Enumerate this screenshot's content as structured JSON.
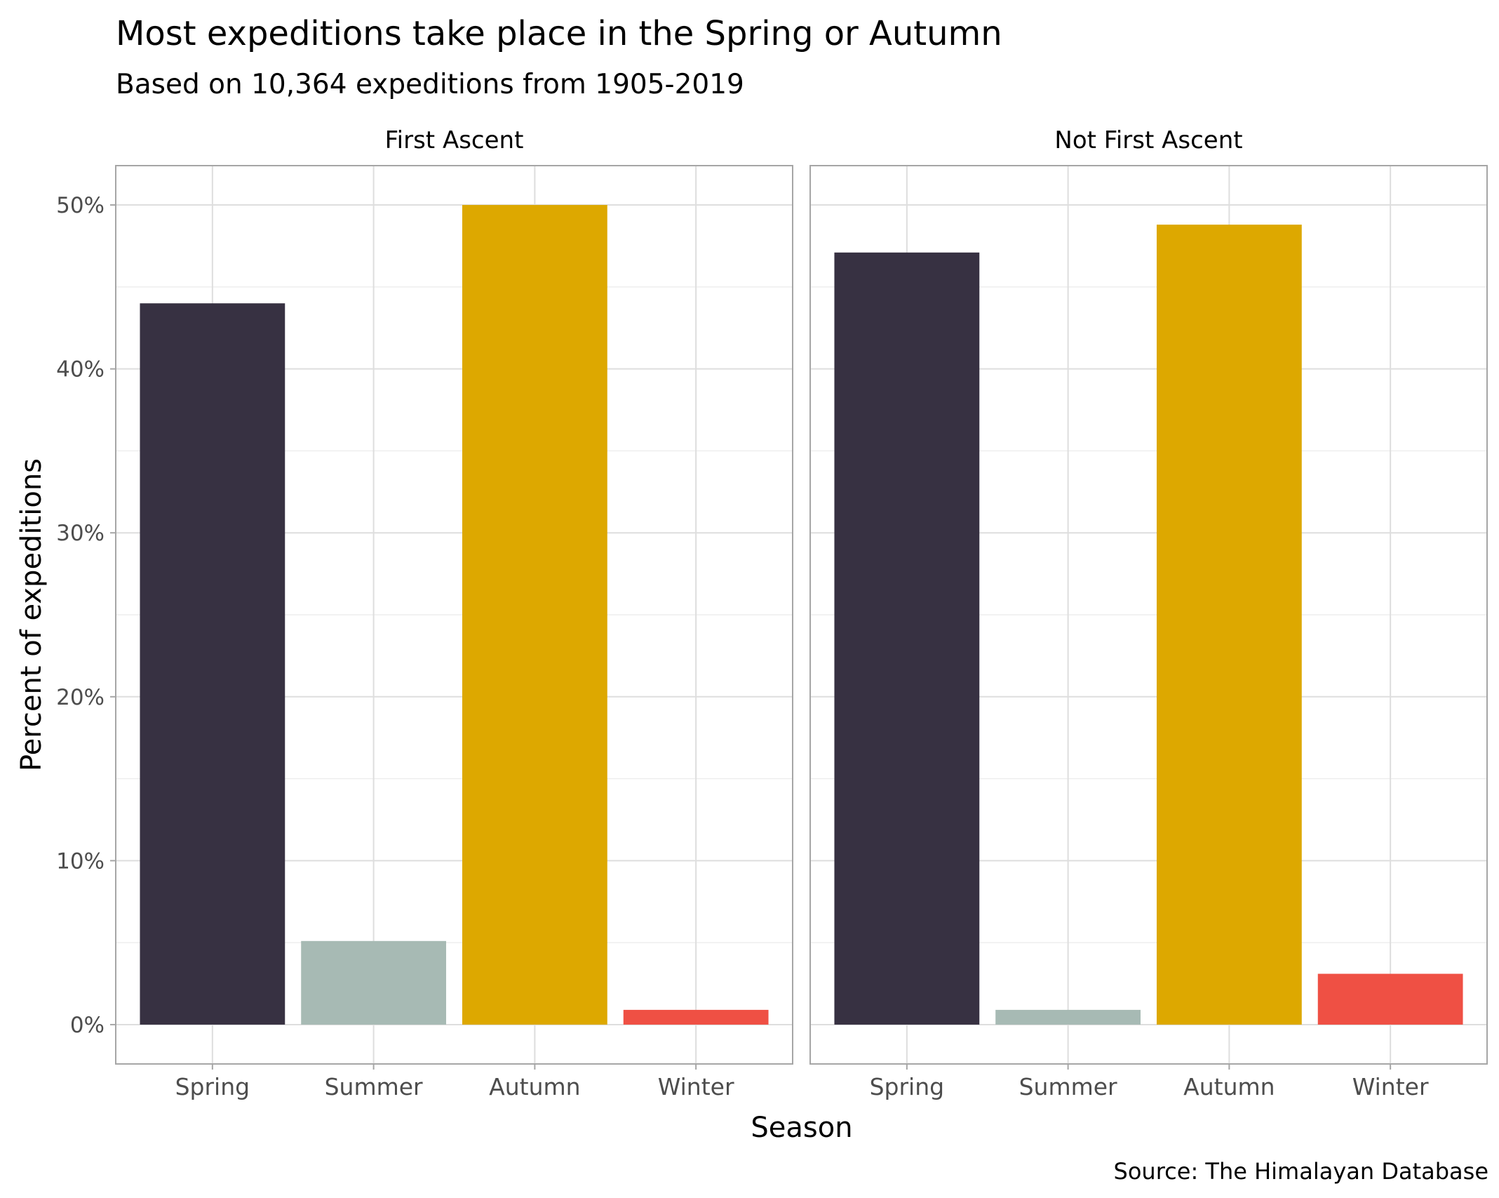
{
  "title": "Most expeditions take place in the Spring or Autumn",
  "subtitle": "Based on 10,364 expeditions from 1905-2019",
  "caption": "Source: The Himalayan Database",
  "chart_data": {
    "type": "bar",
    "facets": [
      "First Ascent",
      "Not First Ascent"
    ],
    "categories": [
      "Spring",
      "Summer",
      "Autumn",
      "Winter"
    ],
    "series": [
      {
        "name": "First Ascent",
        "values": [
          44.0,
          5.1,
          50.0,
          0.9
        ]
      },
      {
        "name": "Not First Ascent",
        "values": [
          47.1,
          0.9,
          48.8,
          3.1
        ]
      }
    ],
    "colors": [
      "#373142",
      "#a7bab4",
      "#dda800",
      "#ef5044"
    ],
    "xlabel": "Season",
    "ylabel": "Percent of expeditions",
    "ylim": [
      -2.4,
      52.4
    ],
    "yticks": [
      0,
      10,
      20,
      30,
      40,
      50
    ],
    "ytick_labels": [
      "0%",
      "10%",
      "20%",
      "30%",
      "40%",
      "50%"
    ],
    "grid": true,
    "legend": "none"
  }
}
